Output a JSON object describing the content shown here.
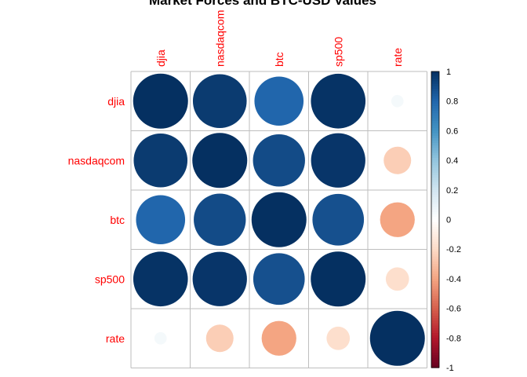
{
  "chart_data": {
    "type": "heatmap",
    "subtype": "correlation-circles",
    "title": "Market Forces and BTC-USD Values",
    "variables": [
      "djia",
      "nasdaqcom",
      "btc",
      "sp500",
      "rate"
    ],
    "matrix": [
      [
        1.0,
        0.96,
        0.8,
        0.99,
        0.05
      ],
      [
        0.96,
        1.0,
        0.9,
        0.98,
        -0.25
      ],
      [
        0.8,
        0.9,
        1.0,
        0.88,
        -0.4
      ],
      [
        0.99,
        0.98,
        0.88,
        1.0,
        -0.18
      ],
      [
        0.05,
        -0.25,
        -0.4,
        -0.18,
        1.0
      ]
    ],
    "color_scale": {
      "range": [
        -1,
        1
      ],
      "ticks": [
        "-1",
        "-0.8",
        "-0.6",
        "-0.4",
        "-0.2",
        "0",
        "0.2",
        "0.4",
        "0.6",
        "0.8",
        "1"
      ],
      "stops": [
        {
          "v": -1.0,
          "color": "#67001f"
        },
        {
          "v": -0.8,
          "color": "#b2182b"
        },
        {
          "v": -0.6,
          "color": "#d6604d"
        },
        {
          "v": -0.4,
          "color": "#f4a582"
        },
        {
          "v": -0.2,
          "color": "#fddbc7"
        },
        {
          "v": 0.0,
          "color": "#ffffff"
        },
        {
          "v": 0.2,
          "color": "#d1e5f0"
        },
        {
          "v": 0.4,
          "color": "#92c5de"
        },
        {
          "v": 0.6,
          "color": "#4393c3"
        },
        {
          "v": 0.8,
          "color": "#2166ac"
        },
        {
          "v": 1.0,
          "color": "#053061"
        }
      ]
    },
    "label_color": "#ff0000",
    "grid": true,
    "legend": "right"
  }
}
